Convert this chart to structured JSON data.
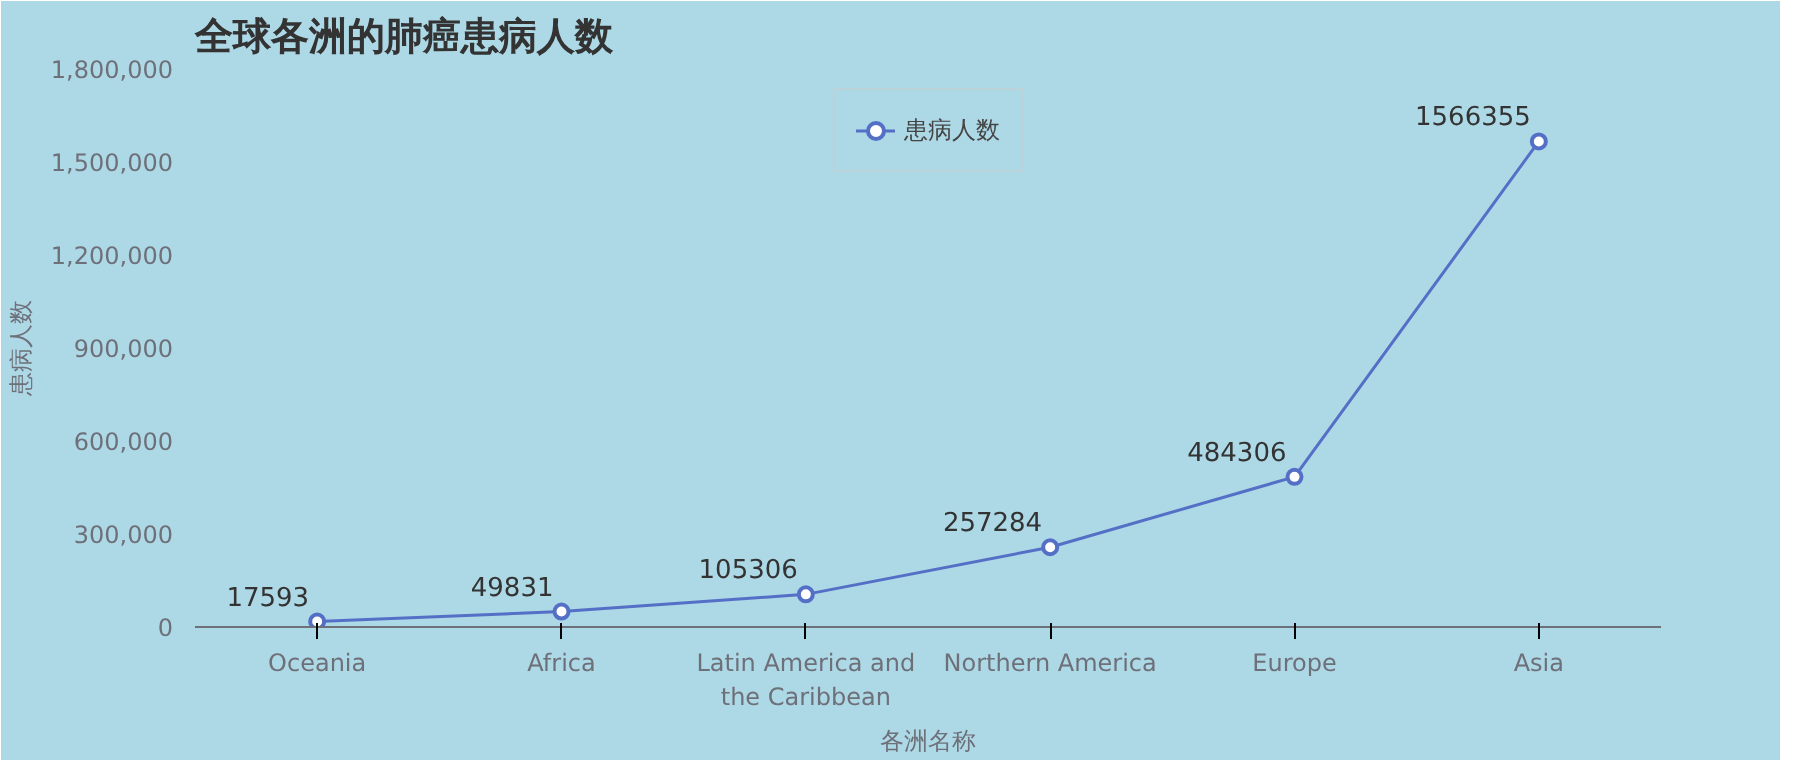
{
  "chart_data": {
    "type": "line",
    "title": "全球各洲的肺癌患病人数",
    "xlabel": "各洲名称",
    "ylabel": "患病人数",
    "categories": [
      "Oceania",
      "Africa",
      "Latin America and the Caribbean",
      "Northern America",
      "Europe",
      "Asia"
    ],
    "series": [
      {
        "name": "患病人数",
        "color": "#5470c6",
        "values": [
          17593,
          49831,
          105306,
          257284,
          484306,
          1566355
        ]
      }
    ],
    "ylim": [
      0,
      1800000
    ],
    "yticks": [
      0,
      {
        "value": 300000,
        "label": "300,000"
      },
      {
        "value": 600000,
        "label": "600,000"
      },
      {
        "value": 900000,
        "label": "900,000"
      },
      {
        "value": 1200000,
        "label": "1,200,000"
      },
      {
        "value": 1500000,
        "label": "1,500,000"
      },
      {
        "value": 1800000,
        "label": "1,800,000"
      }
    ],
    "data_labels": true,
    "legend": "top",
    "marker": "circle",
    "line_style": "solid",
    "grid": false
  }
}
